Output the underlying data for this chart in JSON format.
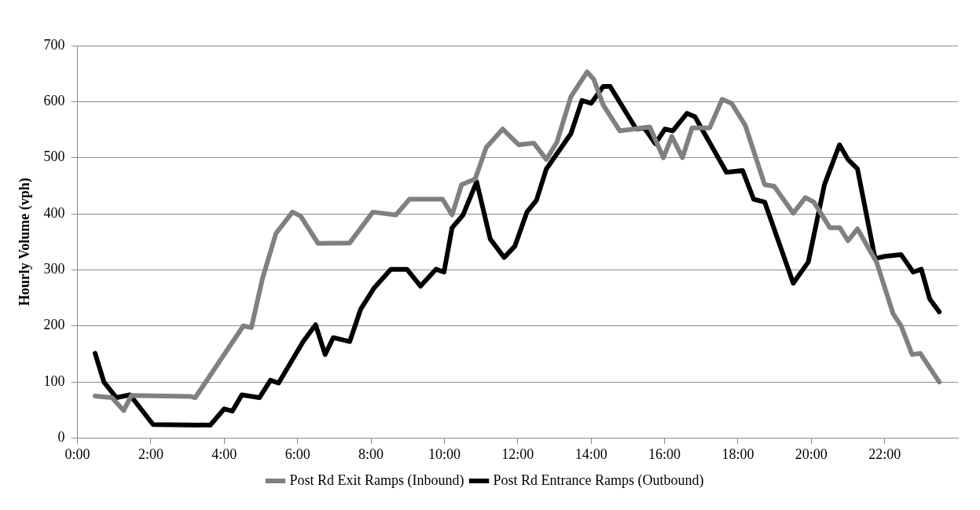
{
  "chart_data": {
    "type": "line",
    "ylabel": "Hourly Volume (vph)",
    "xlim": [
      0,
      24
    ],
    "xticks": [
      {
        "value": 0,
        "label": "0:00"
      },
      {
        "value": 2,
        "label": "2:00"
      },
      {
        "value": 4,
        "label": "4:00"
      },
      {
        "value": 6,
        "label": "6:00"
      },
      {
        "value": 8,
        "label": "8:00"
      },
      {
        "value": 10,
        "label": "10:00"
      },
      {
        "value": 12,
        "label": "12:00"
      },
      {
        "value": 14,
        "label": "14:00"
      },
      {
        "value": 16,
        "label": "16:00"
      },
      {
        "value": 18,
        "label": "18:00"
      },
      {
        "value": 20,
        "label": "20:00"
      },
      {
        "value": 22,
        "label": "22:00"
      }
    ],
    "ylim": [
      0,
      700
    ],
    "yticks": [
      0,
      100,
      200,
      300,
      400,
      500,
      600,
      700
    ],
    "grid": "y",
    "legend": "bottom",
    "marker": "none",
    "line_style": "solid",
    "series": [
      {
        "name": "Post Rd Exit Ramps (Inbound)",
        "color": "#808080",
        "x": [
          0.48,
          0.94,
          1.26,
          1.47,
          3.1,
          3.21,
          4.52,
          4.74,
          5.04,
          5.41,
          5.86,
          6.08,
          6.56,
          7.42,
          8.05,
          8.68,
          9.05,
          9.95,
          10.21,
          10.47,
          10.84,
          11.14,
          11.59,
          12.03,
          12.44,
          12.78,
          13.07,
          13.45,
          13.89,
          14.07,
          14.33,
          14.78,
          15.6,
          15.97,
          16.2,
          16.49,
          16.75,
          17.23,
          17.57,
          17.83,
          18.2,
          18.73,
          18.99,
          19.51,
          19.84,
          20.07,
          20.51,
          20.78,
          21.0,
          21.26,
          21.78,
          22.23,
          22.45,
          22.75,
          22.97,
          23.49
        ],
        "values": [
          75,
          72,
          49,
          76,
          74,
          72,
          200,
          197,
          284,
          365,
          403,
          396,
          347,
          348,
          403,
          398,
          426,
          426,
          398,
          452,
          462,
          518,
          551,
          523,
          526,
          497,
          528,
          609,
          653,
          640,
          594,
          548,
          555,
          500,
          538,
          500,
          553,
          553,
          604,
          597,
          558,
          452,
          449,
          401,
          429,
          421,
          375,
          375,
          352,
          373,
          314,
          222,
          200,
          149,
          151,
          100
        ]
      },
      {
        "name": "Post Rd Entrance Ramps (Outbound)",
        "color": "#000000",
        "x": [
          0.48,
          0.72,
          1.06,
          1.43,
          2.06,
          3.62,
          4.0,
          4.22,
          4.48,
          4.96,
          5.26,
          5.48,
          6.15,
          6.49,
          6.75,
          6.97,
          7.42,
          7.72,
          8.09,
          8.54,
          8.98,
          9.35,
          9.77,
          9.99,
          10.21,
          10.51,
          10.88,
          11.25,
          11.63,
          11.92,
          12.25,
          12.51,
          12.78,
          13.45,
          13.75,
          14.0,
          14.33,
          14.52,
          15.23,
          15.45,
          15.75,
          16.01,
          16.23,
          16.61,
          16.83,
          17.69,
          18.13,
          18.43,
          18.73,
          19.51,
          19.92,
          20.36,
          20.77,
          21.0,
          21.26,
          21.74,
          22.0,
          22.45,
          22.78,
          23.0,
          23.23,
          23.49
        ],
        "values": [
          151,
          100,
          72,
          77,
          24,
          23,
          52,
          48,
          77,
          72,
          103,
          98,
          172,
          202,
          149,
          179,
          172,
          230,
          268,
          301,
          301,
          271,
          301,
          296,
          375,
          398,
          457,
          355,
          322,
          342,
          403,
          424,
          480,
          543,
          602,
          597,
          627,
          627,
          551,
          553,
          525,
          551,
          548,
          579,
          573,
          474,
          477,
          426,
          421,
          276,
          314,
          452,
          523,
          497,
          480,
          320,
          324,
          327,
          296,
          301,
          248,
          225
        ]
      }
    ]
  }
}
